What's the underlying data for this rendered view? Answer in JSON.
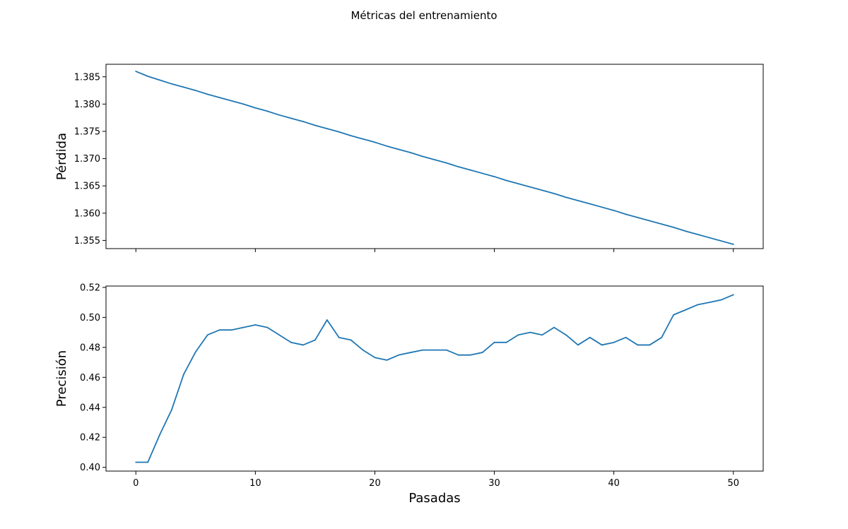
{
  "figure": {
    "title": "Métricas del entrenamiento",
    "line_color": "#1f77b4"
  },
  "chart_data": [
    {
      "type": "line",
      "title": "",
      "xlabel": "",
      "ylabel": "Pérdida",
      "xlim": [
        -2.5,
        52.5
      ],
      "ylim": [
        1.3535,
        1.3873
      ],
      "xticks": [
        0,
        10,
        20,
        30,
        40,
        50
      ],
      "xtick_labels": [],
      "yticks": [
        1.355,
        1.36,
        1.365,
        1.37,
        1.375,
        1.38,
        1.385
      ],
      "ytick_labels": [
        "1.355",
        "1.360",
        "1.365",
        "1.370",
        "1.375",
        "1.380",
        "1.385"
      ],
      "grid": false,
      "series": [
        {
          "x": [
            0,
            1,
            2,
            3,
            4,
            5,
            6,
            7,
            8,
            9,
            10,
            11,
            12,
            13,
            14,
            15,
            16,
            17,
            18,
            19,
            20,
            21,
            22,
            23,
            24,
            25,
            26,
            27,
            28,
            29,
            30,
            31,
            32,
            33,
            34,
            35,
            36,
            37,
            38,
            39,
            40,
            41,
            42,
            43,
            44,
            45,
            46,
            47,
            48,
            49,
            50
          ],
          "values": [
            1.386,
            1.3851,
            1.3844,
            1.3837,
            1.3831,
            1.3825,
            1.3818,
            1.3812,
            1.3806,
            1.38,
            1.3793,
            1.3787,
            1.378,
            1.3774,
            1.3768,
            1.3761,
            1.3755,
            1.3749,
            1.3742,
            1.3736,
            1.373,
            1.3723,
            1.3717,
            1.3711,
            1.3704,
            1.3698,
            1.3692,
            1.3685,
            1.3679,
            1.3673,
            1.3667,
            1.366,
            1.3654,
            1.3648,
            1.3642,
            1.3636,
            1.3629,
            1.3623,
            1.3617,
            1.3611,
            1.3605,
            1.3598,
            1.3592,
            1.3586,
            1.358,
            1.3574,
            1.3567,
            1.3561,
            1.3555,
            1.3549,
            1.3543
          ]
        }
      ]
    },
    {
      "type": "line",
      "title": "",
      "xlabel": "Pasadas",
      "ylabel": "Precisión",
      "xlim": [
        -2.5,
        52.5
      ],
      "ylim": [
        0.3975,
        0.5209
      ],
      "xticks": [
        0,
        10,
        20,
        30,
        40,
        50
      ],
      "xtick_labels": [
        "0",
        "10",
        "20",
        "30",
        "40",
        "50"
      ],
      "yticks": [
        0.4,
        0.42,
        0.44,
        0.46,
        0.48,
        0.5,
        0.52
      ],
      "ytick_labels": [
        "0.40",
        "0.42",
        "0.44",
        "0.46",
        "0.48",
        "0.50",
        "0.52"
      ],
      "grid": false,
      "series": [
        {
          "x": [
            0,
            1,
            2,
            3,
            4,
            5,
            6,
            7,
            8,
            9,
            10,
            11,
            12,
            13,
            14,
            15,
            16,
            17,
            18,
            19,
            20,
            21,
            22,
            23,
            24,
            25,
            26,
            27,
            28,
            29,
            30,
            31,
            32,
            33,
            34,
            35,
            36,
            37,
            38,
            39,
            40,
            41,
            42,
            43,
            44,
            45,
            46,
            47,
            48,
            49,
            50
          ],
          "values": [
            0.4034,
            0.4034,
            0.4218,
            0.4385,
            0.462,
            0.477,
            0.4883,
            0.4916,
            0.4916,
            0.4933,
            0.495,
            0.4933,
            0.4883,
            0.4833,
            0.4816,
            0.4849,
            0.4983,
            0.4866,
            0.4849,
            0.4782,
            0.4732,
            0.4715,
            0.4749,
            0.4766,
            0.4782,
            0.4782,
            0.4782,
            0.4749,
            0.4749,
            0.4766,
            0.4833,
            0.4833,
            0.4883,
            0.49,
            0.4883,
            0.4933,
            0.4883,
            0.4816,
            0.4866,
            0.4816,
            0.4833,
            0.4866,
            0.4816,
            0.4816,
            0.4866,
            0.5017,
            0.505,
            0.5084,
            0.51,
            0.5117,
            0.5151
          ]
        }
      ]
    }
  ]
}
